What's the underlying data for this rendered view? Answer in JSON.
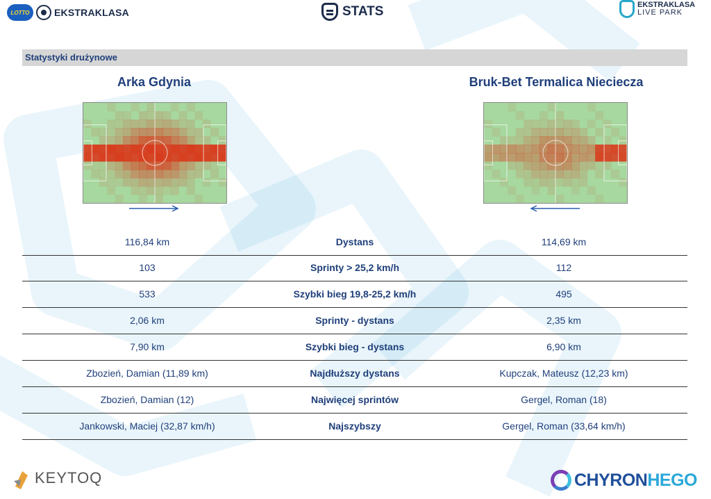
{
  "header": {
    "left_logo_badge": "LOTTO",
    "left_logo_text": "EKSTRAKLASA",
    "center_logo_text": "STATS",
    "right_logo_top": "EKSTRAKLASA",
    "right_logo_bottom": "LIVE PARK"
  },
  "section": {
    "title": "Statystyki drużynowe"
  },
  "teams": {
    "home": "Arka Gdynia",
    "away": "Bruk-Bet Termalica Nieciecza"
  },
  "colors": {
    "accent": "#1f3f7a",
    "heat": "#d83a1c",
    "pitch": "#a7d89f"
  },
  "stats": [
    {
      "home": "116,84 km",
      "label": "Dystans",
      "away": "114,69 km"
    },
    {
      "home": "103",
      "label": "Sprinty > 25,2 km/h",
      "away": "112"
    },
    {
      "home": "533",
      "label": "Szybki bieg 19,8-25,2 km/h",
      "away": "495"
    },
    {
      "home": "2,06 km",
      "label": "Sprinty - dystans",
      "away": "2,35 km"
    },
    {
      "home": "7,90 km",
      "label": "Szybki bieg - dystans",
      "away": "6,90 km"
    },
    {
      "home": "Zbozień, Damian (11,89 km)",
      "label": "Najdłuższy dystans",
      "away": "Kupczak, Mateusz (12,23 km)"
    },
    {
      "home": "Zbozień, Damian (12)",
      "label": "Najwięcej sprintów",
      "away": "Gergel, Roman (18)"
    },
    {
      "home": "Jankowski, Maciej (32,87 km/h)",
      "label": "Najszybszy",
      "away": "Gergel, Roman (33,64 km/h)"
    }
  ],
  "footer": {
    "left_logo": "KEYTOQ",
    "right_logo_a": "CHYRON",
    "right_logo_b": "HEGO"
  }
}
